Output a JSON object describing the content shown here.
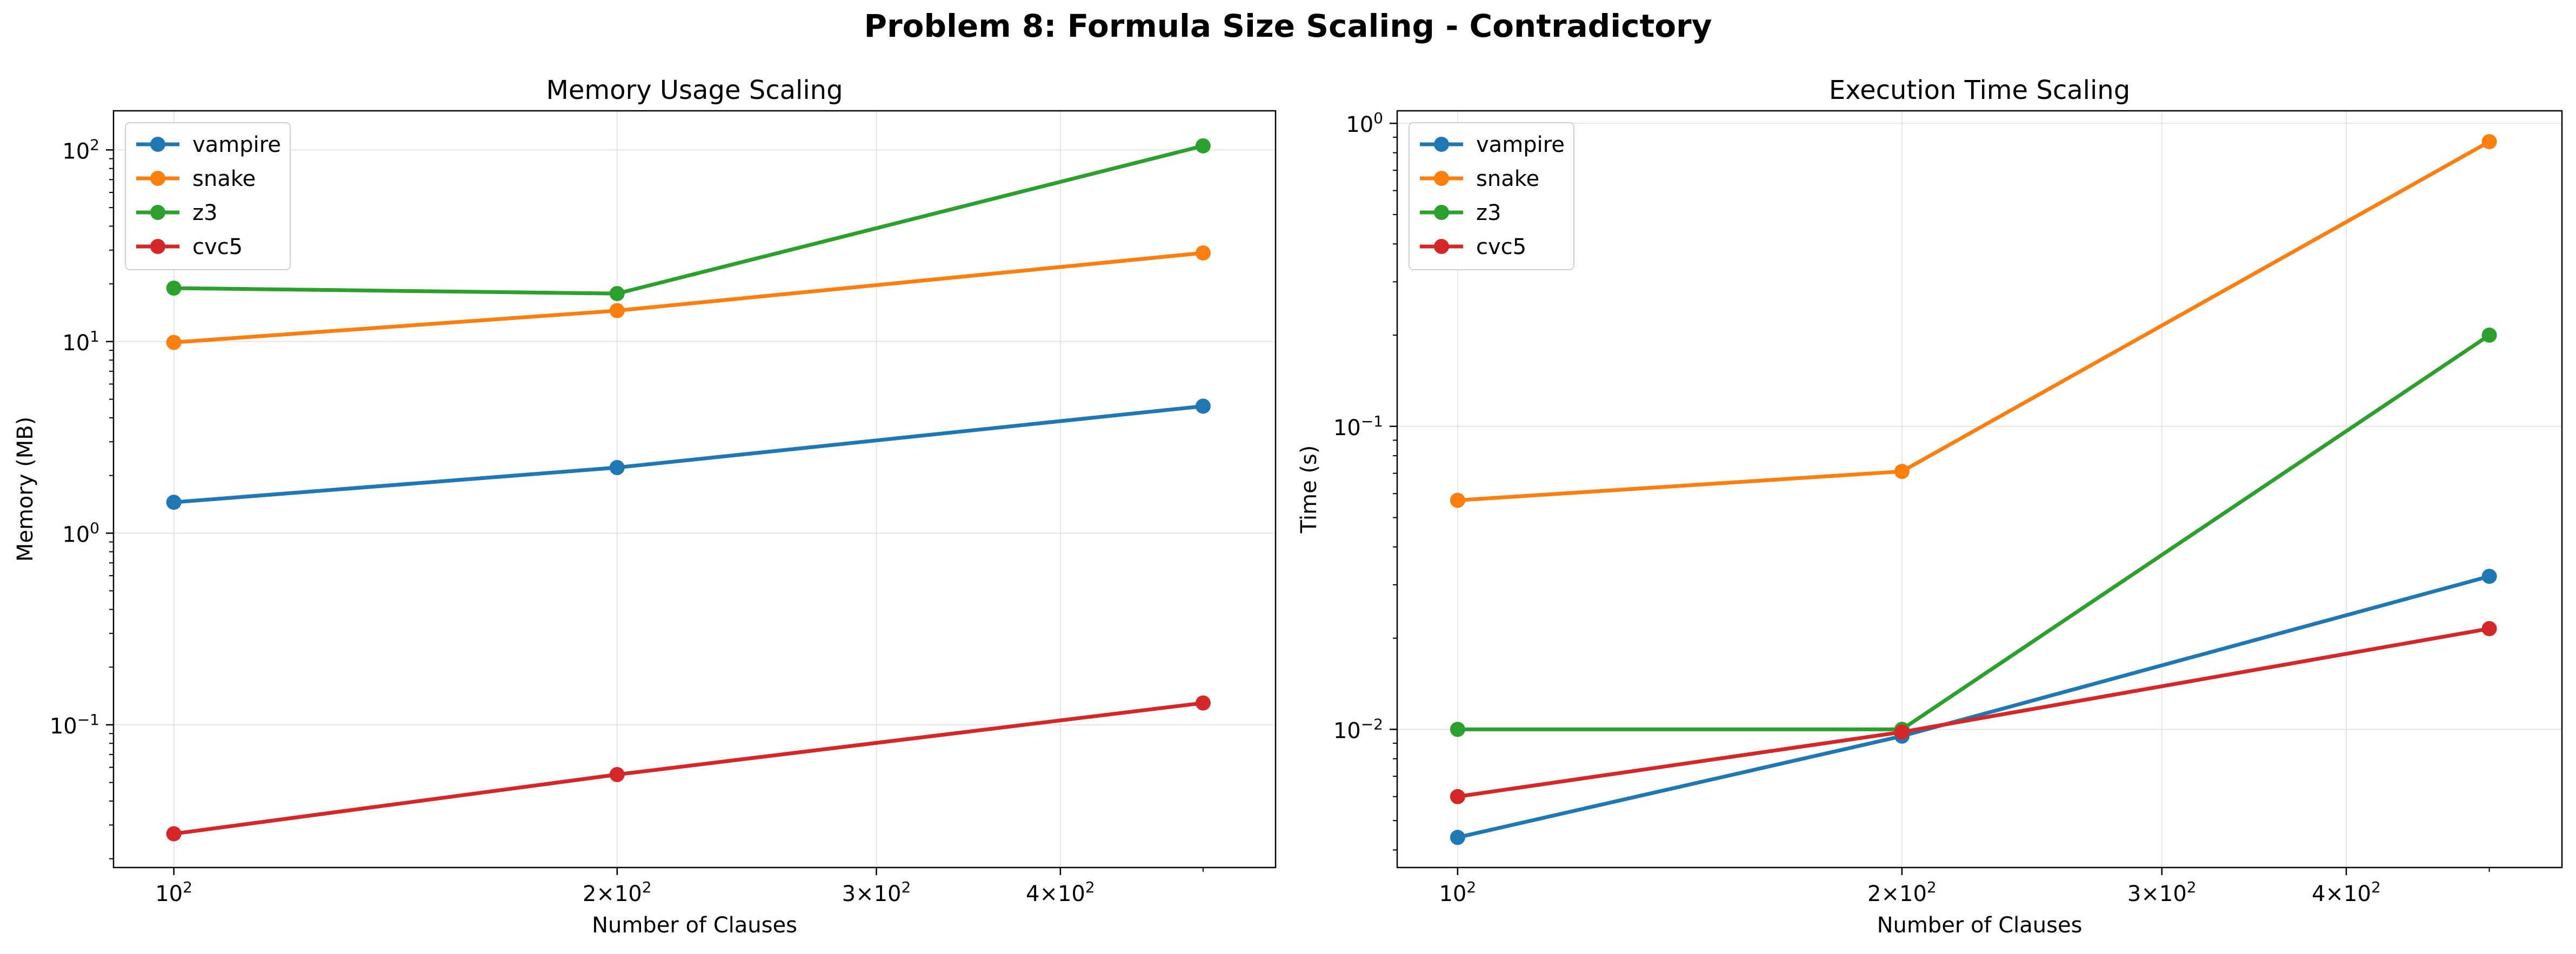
{
  "figure": {
    "title": "Problem 8: Formula Size Scaling - Contradictory"
  },
  "colors": {
    "vampire": "#1f77b4",
    "snake": "#ff7f0e",
    "z3": "#2ca02c",
    "cvc5": "#d62728"
  },
  "chart_data": [
    {
      "type": "line",
      "title": "Memory Usage Scaling",
      "xlabel": "Number of Clauses",
      "ylabel": "Memory (MB)",
      "xscale": "log",
      "yscale": "log",
      "x": [
        100,
        200,
        500
      ],
      "xlim": [
        91,
        560
      ],
      "ylim": [
        0.018,
        160
      ],
      "xticks": [
        {
          "value": 100,
          "base": "10",
          "exp": "2"
        },
        {
          "value": 200,
          "base": "2×10",
          "exp": "2"
        },
        {
          "value": 300,
          "base": "3×10",
          "exp": "2"
        },
        {
          "value": 400,
          "base": "4×10",
          "exp": "2"
        }
      ],
      "yticks": [
        {
          "value": 0.1,
          "base": "10",
          "exp": "−1"
        },
        {
          "value": 1,
          "base": "10",
          "exp": "0"
        },
        {
          "value": 10,
          "base": "10",
          "exp": "1"
        },
        {
          "value": 100,
          "base": "10",
          "exp": "2"
        }
      ],
      "grid": true,
      "legend": "top-left",
      "series": [
        {
          "name": "vampire",
          "values": [
            1.45,
            2.2,
            4.6
          ]
        },
        {
          "name": "snake",
          "values": [
            9.9,
            14.5,
            29
          ]
        },
        {
          "name": "z3",
          "values": [
            19,
            17.8,
            105
          ]
        },
        {
          "name": "cvc5",
          "values": [
            0.027,
            0.055,
            0.13
          ]
        }
      ]
    },
    {
      "type": "line",
      "title": "Execution Time Scaling",
      "xlabel": "Number of Clauses",
      "ylabel": "Time (s)",
      "xscale": "log",
      "yscale": "log",
      "x": [
        100,
        200,
        500
      ],
      "xlim": [
        91,
        560
      ],
      "ylim": [
        0.0035,
        1.1
      ],
      "xticks": [
        {
          "value": 100,
          "base": "10",
          "exp": "2"
        },
        {
          "value": 200,
          "base": "2×10",
          "exp": "2"
        },
        {
          "value": 300,
          "base": "3×10",
          "exp": "2"
        },
        {
          "value": 400,
          "base": "4×10",
          "exp": "2"
        }
      ],
      "yticks": [
        {
          "value": 0.01,
          "base": "10",
          "exp": "−2"
        },
        {
          "value": 0.1,
          "base": "10",
          "exp": "−1"
        },
        {
          "value": 1,
          "base": "10",
          "exp": "0"
        }
      ],
      "grid": true,
      "legend": "top-left",
      "series": [
        {
          "name": "vampire",
          "values": [
            0.0044,
            0.0095,
            0.032
          ]
        },
        {
          "name": "snake",
          "values": [
            0.057,
            0.071,
            0.87
          ]
        },
        {
          "name": "z3",
          "values": [
            0.01,
            0.01,
            0.2
          ]
        },
        {
          "name": "cvc5",
          "values": [
            0.006,
            0.0098,
            0.0215
          ]
        }
      ]
    }
  ]
}
